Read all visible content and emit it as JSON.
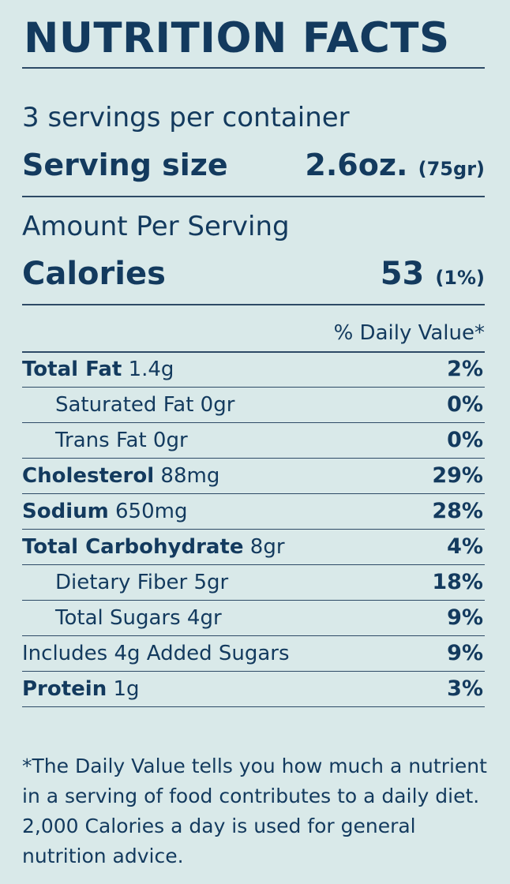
{
  "title": "NUTRITION FACTS",
  "servings_per_container": "3 servings per container",
  "serving_size": {
    "label": "Serving size",
    "value": "2.6oz.",
    "metric": "(75gr)"
  },
  "amount_per_serving": "Amount Per Serving",
  "calories": {
    "label": "Calories",
    "value": "53",
    "percent": "(1%)"
  },
  "daily_value_header": "% Daily Value*",
  "nutrients": [
    {
      "name": "Total Fat",
      "amount": "1.4g",
      "percent": "2%"
    },
    {
      "name": "Saturated Fat 0gr",
      "amount": "",
      "percent": "0%"
    },
    {
      "name": "Trans Fat 0gr",
      "amount": "",
      "percent": "0%"
    },
    {
      "name": "Cholesterol",
      "amount": "88mg",
      "percent": "29%"
    },
    {
      "name": "Sodium",
      "amount": "650mg",
      "percent": "28%"
    },
    {
      "name": "Total Carbohydrate",
      "amount": "8gr",
      "percent": "4%"
    },
    {
      "name": "Dietary Fiber 5gr",
      "amount": "",
      "percent": "18%"
    },
    {
      "name": "Total Sugars 4gr",
      "amount": "",
      "percent": "9%"
    },
    {
      "name": "Includes 4g Added Sugars",
      "amount": "",
      "percent": "9%"
    },
    {
      "name": "Protein",
      "amount": "1g",
      "percent": "3%"
    }
  ],
  "footnote": "*The Daily Value tells you how much a nutrient in a serving of food contributes to a daily diet. 2,000 Calories a day is used for general nutrition advice.",
  "colors": {
    "background": "#d9e9e9",
    "text": "#133a5e",
    "rule": "#2d4a66"
  }
}
